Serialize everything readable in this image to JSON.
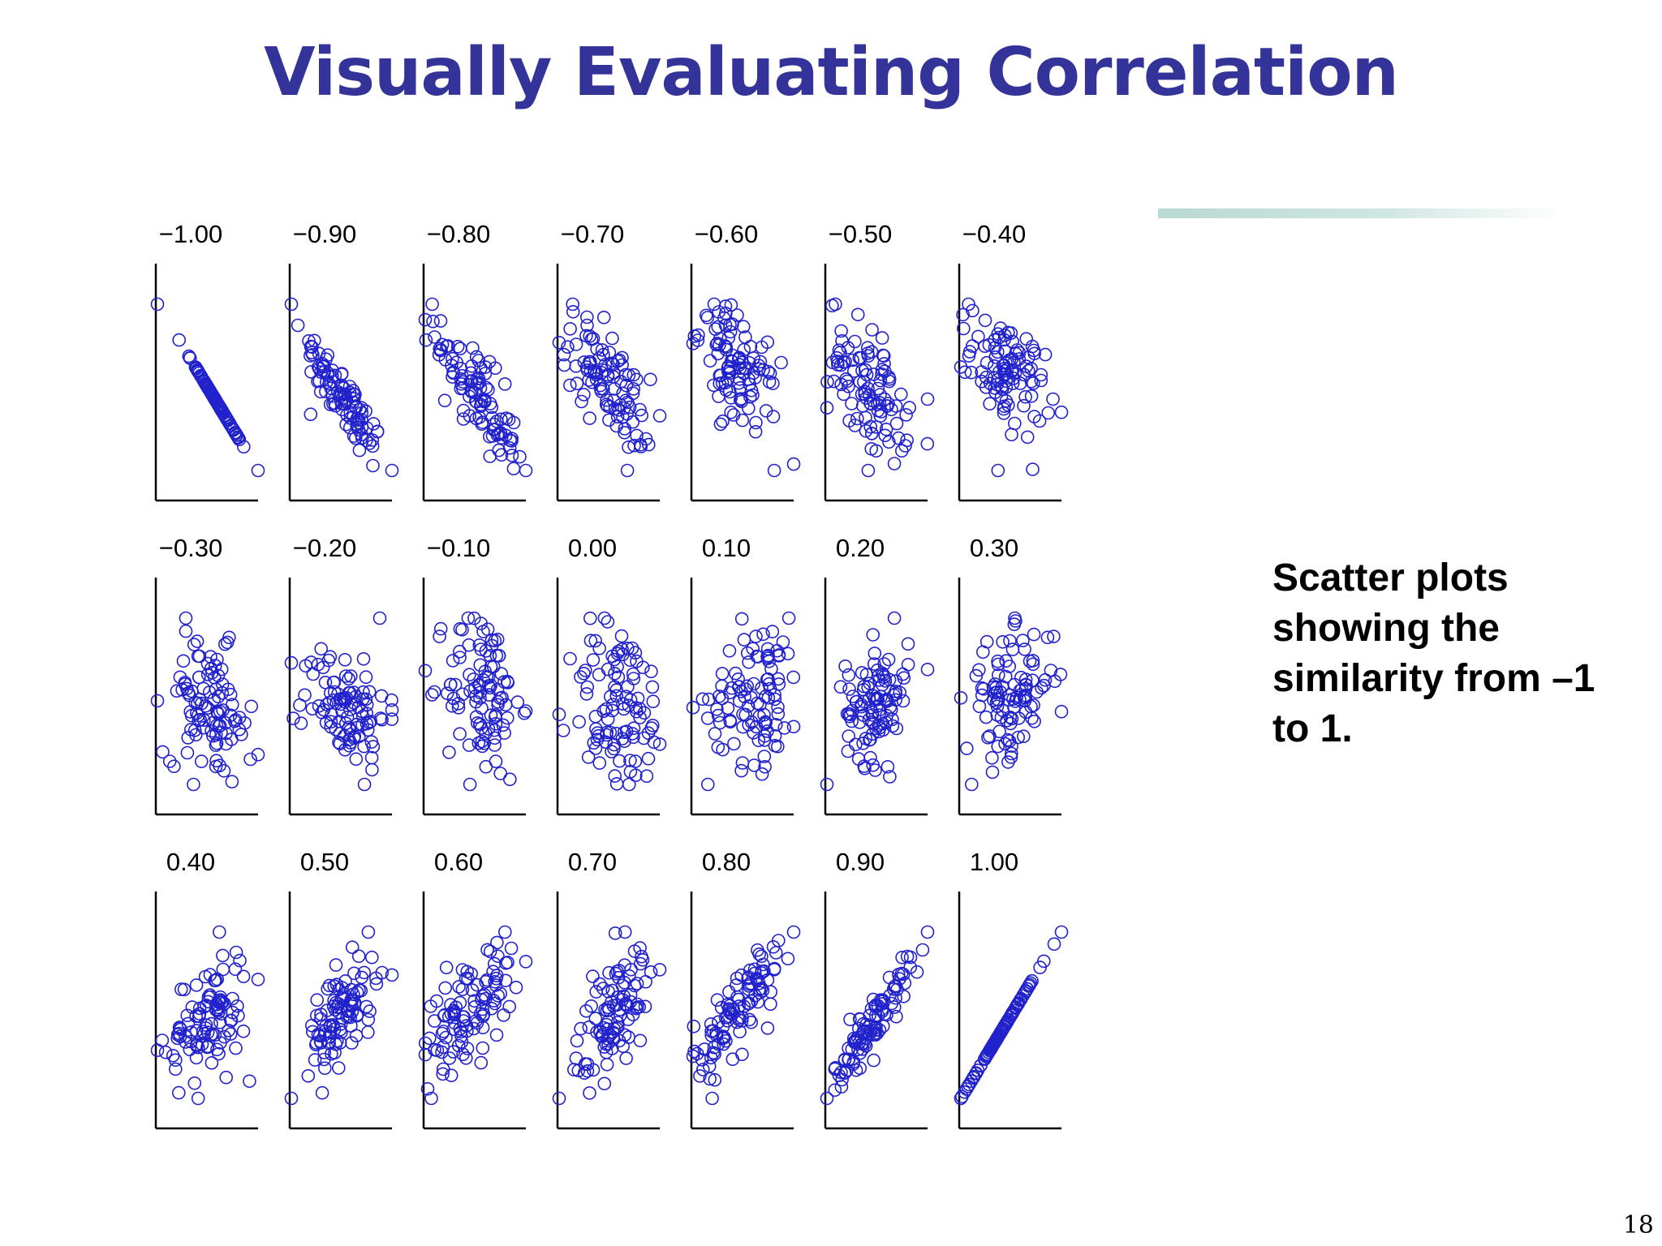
{
  "slide": {
    "title": "Visually Evaluating Correlation",
    "side_text": "Scatter plots showing the similarity from –1 to 1.",
    "page_number": "18",
    "colors": {
      "title": "#333399",
      "points": "#2222cc",
      "accent_bar": "#b9d9d3"
    }
  },
  "chart_data": {
    "type": "scatter",
    "description": "21 small-multiple scatter plots arranged 3 rows x 7 columns; each panel titled by its correlation value; blue open-circle markers; only left and bottom axis lines, no ticks",
    "marker": "open-circle",
    "points_per_panel": 100,
    "panels": [
      {
        "label": "−1.00",
        "r": -1.0
      },
      {
        "label": "−0.90",
        "r": -0.9
      },
      {
        "label": "−0.80",
        "r": -0.8
      },
      {
        "label": "−0.70",
        "r": -0.7
      },
      {
        "label": "−0.60",
        "r": -0.6
      },
      {
        "label": "−0.50",
        "r": -0.5
      },
      {
        "label": "−0.40",
        "r": -0.4
      },
      {
        "label": "−0.30",
        "r": -0.3
      },
      {
        "label": "−0.20",
        "r": -0.2
      },
      {
        "label": "−0.10",
        "r": -0.1
      },
      {
        "label": "0.00",
        "r": 0.0
      },
      {
        "label": "0.10",
        "r": 0.1
      },
      {
        "label": "0.20",
        "r": 0.2
      },
      {
        "label": "0.30",
        "r": 0.3
      },
      {
        "label": "0.40",
        "r": 0.4
      },
      {
        "label": "0.50",
        "r": 0.5
      },
      {
        "label": "0.60",
        "r": 0.6
      },
      {
        "label": "0.70",
        "r": 0.7
      },
      {
        "label": "0.80",
        "r": 0.8
      },
      {
        "label": "0.90",
        "r": 0.9
      },
      {
        "label": "1.00",
        "r": 1.0
      }
    ]
  }
}
